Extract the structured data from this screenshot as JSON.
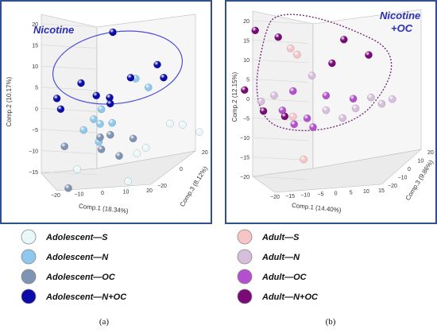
{
  "palette": {
    "panel_border": "#2f4f8f",
    "nicotine_outline_a": "#4a4fd6",
    "nicotine_outline_b": "#7a2a7a"
  },
  "chart_data": [
    {
      "type": "scatter",
      "panel": "(a)",
      "annotation": "Nicotine",
      "xlabel": "Comp.1 (18.34%)",
      "ylabel": "Comp.2 (10.17%)",
      "zlabel": "Comp.3 (8.12%)",
      "xticks": [
        "−20",
        "−10",
        "0",
        "10",
        "20"
      ],
      "yticks": [
        "−15",
        "−10",
        "−5",
        "0",
        "5",
        "10",
        "15",
        "20"
      ],
      "zticks": [
        "−20",
        "0",
        "20"
      ],
      "legend": [
        {
          "name": "Adolescent—S",
          "color": "#e8f8f8"
        },
        {
          "name": "Adolescent—N",
          "color": "#8ec8ee"
        },
        {
          "name": "Adolescent—OC",
          "color": "#7f93b2"
        },
        {
          "name": "Adolescent—N+OC",
          "color": "#0c0ca8"
        }
      ],
      "points": [
        {
          "group": "Adolescent—N+OC",
          "x": 2,
          "y": 18,
          "z": 10
        },
        {
          "group": "Adolescent—N+OC",
          "x": 18,
          "y": 12,
          "z": 5
        },
        {
          "group": "Adolescent—N+OC",
          "x": 22,
          "y": 10,
          "z": 0
        },
        {
          "group": "Adolescent—N+OC",
          "x": -4,
          "y": 8,
          "z": 0
        },
        {
          "group": "Adolescent—N+OC",
          "x": -10,
          "y": 5,
          "z": -4
        },
        {
          "group": "Adolescent—N+OC",
          "x": 0,
          "y": 5,
          "z": 2
        },
        {
          "group": "Adolescent—N+OC",
          "x": 5,
          "y": 5,
          "z": 0
        },
        {
          "group": "Adolescent—N+OC",
          "x": 6,
          "y": 4,
          "z": -2
        },
        {
          "group": "Adolescent—N+OC",
          "x": -8,
          "y": 3,
          "z": -6
        },
        {
          "group": "Adolescent—N+OC",
          "x": 10,
          "y": 9,
          "z": 4
        },
        {
          "group": "Adolescent—N",
          "x": 12,
          "y": 9,
          "z": 3
        },
        {
          "group": "Adolescent—N",
          "x": 18,
          "y": 8,
          "z": -2
        },
        {
          "group": "Adolescent—N",
          "x": 4,
          "y": 3,
          "z": -4
        },
        {
          "group": "Adolescent—N",
          "x": 0,
          "y": 0,
          "z": 0
        },
        {
          "group": "Adolescent—N",
          "x": 2,
          "y": -1,
          "z": 0
        },
        {
          "group": "Adolescent—N",
          "x": 5,
          "y": -1,
          "z": 2
        },
        {
          "group": "Adolescent—N",
          "x": -2,
          "y": -2,
          "z": -3
        },
        {
          "group": "Adolescent—N",
          "x": 4,
          "y": -4,
          "z": -6
        },
        {
          "group": "Adolescent—OC",
          "x": 6,
          "y": -3,
          "z": -2
        },
        {
          "group": "Adolescent—OC",
          "x": 4,
          "y": -6,
          "z": -4
        },
        {
          "group": "Adolescent—OC",
          "x": 2,
          "y": -4,
          "z": 0
        },
        {
          "group": "Adolescent—OC",
          "x": -6,
          "y": -5,
          "z": -8
        },
        {
          "group": "Adolescent—OC",
          "x": 10,
          "y": -5,
          "z": 6
        },
        {
          "group": "Adolescent—OC",
          "x": 8,
          "y": -8,
          "z": 0
        },
        {
          "group": "Adolescent—OC",
          "x": -4,
          "y": -14,
          "z": -10
        },
        {
          "group": "Adolescent—S",
          "x": 20,
          "y": -2,
          "z": 10
        },
        {
          "group": "Adolescent—S",
          "x": 22,
          "y": -3,
          "z": 15
        },
        {
          "group": "Adolescent—S",
          "x": 26,
          "y": -5,
          "z": 18
        },
        {
          "group": "Adolescent—S",
          "x": 12,
          "y": -8,
          "z": 4
        },
        {
          "group": "Adolescent—S",
          "x": 14,
          "y": -7,
          "z": 6
        },
        {
          "group": "Adolescent—S",
          "x": -2,
          "y": -10,
          "z": -8
        },
        {
          "group": "Adolescent—S",
          "x": 10,
          "y": -14,
          "z": 2
        }
      ]
    },
    {
      "type": "scatter",
      "panel": "(b)",
      "annotation": "Nicotine +OC",
      "xlabel": "Comp.1 (14.40%)",
      "ylabel": "Comp.2 (12.15%)",
      "zlabel": "Comp.3 (9.86%)",
      "xticks": [
        "−20",
        "−15",
        "−10",
        "−5",
        "0",
        "5",
        "10",
        "15"
      ],
      "yticks": [
        "−20",
        "−15",
        "−10",
        "−5",
        "0",
        "5",
        "10",
        "15",
        "20"
      ],
      "zticks": [
        "−20",
        "−10",
        "0",
        "10",
        "20"
      ],
      "legend": [
        {
          "name": "Adult—S",
          "color": "#f6c6c6"
        },
        {
          "name": "Adult—N",
          "color": "#d8bedd"
        },
        {
          "name": "Adult—OC",
          "color": "#b44fcf"
        },
        {
          "name": "Adult—N+OC",
          "color": "#7a0a76"
        }
      ],
      "points": [
        {
          "group": "Adult—N+OC",
          "x": -14,
          "y": 18,
          "z": -4
        },
        {
          "group": "Adult—N+OC",
          "x": -9,
          "y": 16,
          "z": -2
        },
        {
          "group": "Adult—N+OC",
          "x": 4,
          "y": 14,
          "z": 8
        },
        {
          "group": "Adult—N+OC",
          "x": 10,
          "y": 10,
          "z": 8
        },
        {
          "group": "Adult—N+OC",
          "x": 2,
          "y": 8,
          "z": 5
        },
        {
          "group": "Adult—N+OC",
          "x": -16,
          "y": 2,
          "z": -6
        },
        {
          "group": "Adult—N+OC",
          "x": -12,
          "y": -4,
          "z": -4
        },
        {
          "group": "Adult—N+OC",
          "x": -8,
          "y": -6,
          "z": 0
        },
        {
          "group": "Adult—S",
          "x": -6,
          "y": 13,
          "z": -2
        },
        {
          "group": "Adult—S",
          "x": -5,
          "y": 11,
          "z": 0
        },
        {
          "group": "Adult—S",
          "x": -6,
          "y": -6,
          "z": 0
        },
        {
          "group": "Adult—S",
          "x": -4,
          "y": -18,
          "z": 2
        },
        {
          "group": "Adult—N",
          "x": -2,
          "y": 5,
          "z": 2
        },
        {
          "group": "Adult—N",
          "x": 10,
          "y": -2,
          "z": 10
        },
        {
          "group": "Adult—N",
          "x": 14,
          "y": -3,
          "z": 14
        },
        {
          "group": "Adult—N",
          "x": 12,
          "y": -4,
          "z": 12
        },
        {
          "group": "Adult—N",
          "x": -10,
          "y": 0,
          "z": -2
        },
        {
          "group": "Adult—N",
          "x": -12,
          "y": -1,
          "z": -6
        },
        {
          "group": "Adult—N",
          "x": 2,
          "y": -4,
          "z": 0
        },
        {
          "group": "Adult—N",
          "x": 6,
          "y": -6,
          "z": 0
        },
        {
          "group": "Adult—N",
          "x": 8,
          "y": -4,
          "z": 4
        },
        {
          "group": "Adult—OC",
          "x": -6,
          "y": 1,
          "z": 0
        },
        {
          "group": "Adult—OC",
          "x": 2,
          "y": 0,
          "z": 0
        },
        {
          "group": "Adult—OC",
          "x": 8,
          "y": -1,
          "z": 2
        },
        {
          "group": "Adult—OC",
          "x": -8,
          "y": -4,
          "z": -2
        },
        {
          "group": "Adult—OC",
          "x": -4,
          "y": -7,
          "z": -6
        },
        {
          "group": "Adult—OC",
          "x": -2,
          "y": -6,
          "z": -2
        },
        {
          "group": "Adult—OC",
          "x": 0,
          "y": -8,
          "z": -4
        }
      ]
    }
  ]
}
